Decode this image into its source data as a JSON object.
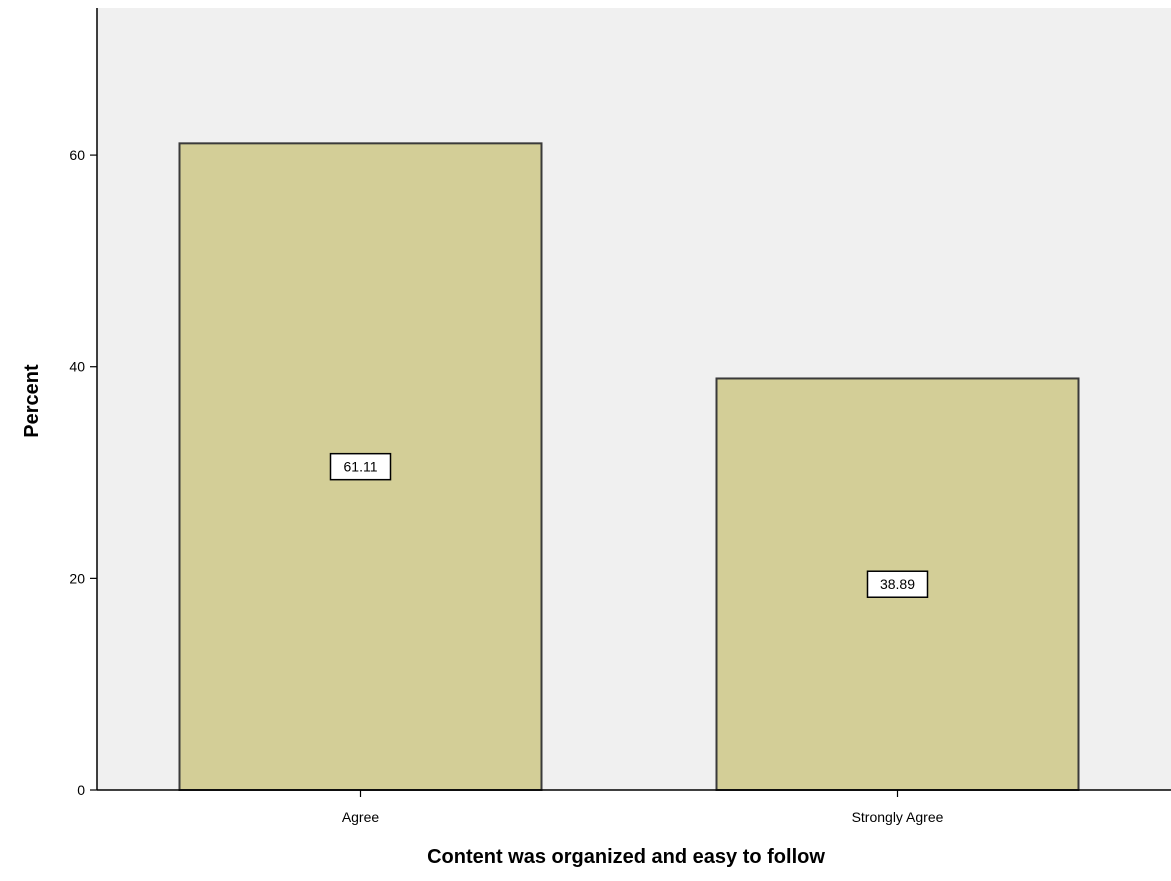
{
  "chart_data": {
    "type": "bar",
    "title": "",
    "xlabel": "Content was organized and easy to follow",
    "ylabel": "Percent",
    "categories": [
      "Agree",
      "Strongly Agree"
    ],
    "values": [
      61.11,
      38.89
    ],
    "data_labels": [
      "61.11",
      "38.89"
    ],
    "ylim": [
      0,
      73.9
    ],
    "yticks": [
      0,
      20,
      40,
      60
    ],
    "ytick_labels": [
      "0",
      "20",
      "40",
      "60"
    ],
    "grid": false,
    "legend": "none",
    "colors": {
      "bar_fill": "#d3ce97",
      "bar_stroke": "#3a3a3a",
      "plot_background": "#f0f0f0"
    }
  }
}
